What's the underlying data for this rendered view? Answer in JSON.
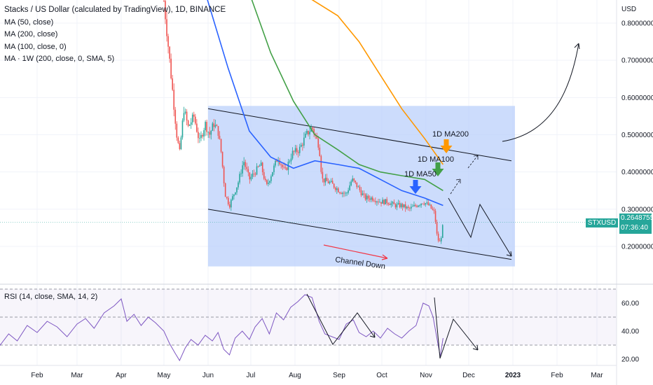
{
  "chart_data": [
    {
      "type": "candlestick",
      "title": "Stacks / US Dollar (calculated by TradingView), 1D, BINANCE",
      "indicators": [
        "MA (50, close)",
        "MA (200, close)",
        "MA (100, close, 0)",
        "MA · 1W (200, close, 0, SMA, 5)"
      ],
      "currency_label": "USD",
      "y_ticks": [
        "0.80000000",
        "0.70000000",
        "0.60000000",
        "0.50000000",
        "0.40000000",
        "0.30000000",
        "0.20000000"
      ],
      "ylim": [
        0.17,
        0.875
      ],
      "x_ticks": [
        "Feb",
        "Mar",
        "Apr",
        "May",
        "Jun",
        "Jul",
        "Aug",
        "Sep",
        "Oct",
        "Nov",
        "Dec",
        "2023",
        "Feb",
        "Mar"
      ],
      "price": {
        "symbol": "STXUSD",
        "value": "0.26487555",
        "countdown": "07:36:40"
      },
      "price_path": [
        [
          "2022-05-01",
          0.86
        ],
        [
          "2022-05-03",
          0.78
        ],
        [
          "2022-05-06",
          0.66
        ],
        [
          "2022-05-08",
          0.58
        ],
        [
          "2022-05-10",
          0.5
        ],
        [
          "2022-05-12",
          0.45
        ],
        [
          "2022-05-15",
          0.57
        ],
        [
          "2022-05-18",
          0.52
        ],
        [
          "2022-05-22",
          0.55
        ],
        [
          "2022-05-26",
          0.48
        ],
        [
          "2022-05-30",
          0.53
        ],
        [
          "2022-06-02",
          0.5
        ],
        [
          "2022-06-05",
          0.53
        ],
        [
          "2022-06-08",
          0.51
        ],
        [
          "2022-06-10",
          0.46
        ],
        [
          "2022-06-13",
          0.34
        ],
        [
          "2022-06-16",
          0.31
        ],
        [
          "2022-06-19",
          0.34
        ],
        [
          "2022-06-22",
          0.37
        ],
        [
          "2022-06-26",
          0.43
        ],
        [
          "2022-06-30",
          0.38
        ],
        [
          "2022-07-04",
          0.4
        ],
        [
          "2022-07-08",
          0.42
        ],
        [
          "2022-07-12",
          0.36
        ],
        [
          "2022-07-16",
          0.4
        ],
        [
          "2022-07-20",
          0.44
        ],
        [
          "2022-07-25",
          0.4
        ],
        [
          "2022-07-30",
          0.45
        ],
        [
          "2022-08-04",
          0.46
        ],
        [
          "2022-08-09",
          0.5
        ],
        [
          "2022-08-13",
          0.52
        ],
        [
          "2022-08-18",
          0.47
        ],
        [
          "2022-08-20",
          0.38
        ],
        [
          "2022-08-26",
          0.37
        ],
        [
          "2022-09-01",
          0.35
        ],
        [
          "2022-09-06",
          0.34
        ],
        [
          "2022-09-10",
          0.38
        ],
        [
          "2022-09-14",
          0.36
        ],
        [
          "2022-09-19",
          0.33
        ],
        [
          "2022-09-24",
          0.33
        ],
        [
          "2022-09-30",
          0.32
        ],
        [
          "2022-10-05",
          0.32
        ],
        [
          "2022-10-10",
          0.31
        ],
        [
          "2022-10-15",
          0.31
        ],
        [
          "2022-10-20",
          0.3
        ],
        [
          "2022-10-25",
          0.31
        ],
        [
          "2022-10-30",
          0.32
        ],
        [
          "2022-11-03",
          0.31
        ],
        [
          "2022-11-07",
          0.29
        ],
        [
          "2022-11-09",
          0.22
        ],
        [
          "2022-11-11",
          0.21
        ],
        [
          "2022-11-13",
          0.26
        ]
      ],
      "moving_averages": [
        {
          "name": "1D MA50",
          "color": "#2962ff",
          "points": [
            [
              "2022-05-31",
              0.87
            ],
            [
              "2022-06-15",
              0.68
            ],
            [
              "2022-06-30",
              0.51
            ],
            [
              "2022-07-15",
              0.44
            ],
            [
              "2022-07-31",
              0.41
            ],
            [
              "2022-08-15",
              0.43
            ],
            [
              "2022-08-31",
              0.42
            ],
            [
              "2022-09-15",
              0.41
            ],
            [
              "2022-09-30",
              0.38
            ],
            [
              "2022-10-15",
              0.35
            ],
            [
              "2022-10-31",
              0.33
            ],
            [
              "2022-11-13",
              0.31
            ]
          ]
        },
        {
          "name": "1D MA100",
          "color": "#43a047",
          "points": [
            [
              "2022-07-01",
              0.87
            ],
            [
              "2022-07-15",
              0.72
            ],
            [
              "2022-07-31",
              0.59
            ],
            [
              "2022-08-15",
              0.5
            ],
            [
              "2022-08-31",
              0.46
            ],
            [
              "2022-09-15",
              0.42
            ],
            [
              "2022-09-30",
              0.4
            ],
            [
              "2022-10-15",
              0.39
            ],
            [
              "2022-10-31",
              0.38
            ],
            [
              "2022-11-13",
              0.35
            ]
          ]
        },
        {
          "name": "1D MA200",
          "color": "#ff9800",
          "points": [
            [
              "2022-08-10",
              0.87
            ],
            [
              "2022-08-31",
              0.82
            ],
            [
              "2022-09-15",
              0.75
            ],
            [
              "2022-09-30",
              0.66
            ],
            [
              "2022-10-15",
              0.57
            ],
            [
              "2022-10-31",
              0.49
            ],
            [
              "2022-11-13",
              0.42
            ]
          ]
        }
      ],
      "channel": {
        "label": "Channel Down",
        "upper": [
          [
            "2022-06-01",
            0.57
          ],
          [
            "2022-12-31",
            0.43
          ]
        ],
        "lower": [
          [
            "2022-06-01",
            0.3
          ],
          [
            "2022-12-31",
            0.165
          ]
        ]
      },
      "annotations": [
        "1D MA200",
        "1D MA100",
        "1D MA50"
      ]
    },
    {
      "type": "line",
      "title": "RSI (14, close, SMA, 14, 2)",
      "y_ticks": [
        "60.00",
        "40.00",
        "20.00"
      ],
      "ylim": [
        15,
        75
      ],
      "bands": [
        30,
        50,
        70
      ],
      "values": [
        [
          "2022-01-01",
          42
        ],
        [
          "2022-01-06",
          30
        ],
        [
          "2022-01-12",
          38
        ],
        [
          "2022-01-18",
          33
        ],
        [
          "2022-01-25",
          44
        ],
        [
          "2022-02-01",
          39
        ],
        [
          "2022-02-08",
          47
        ],
        [
          "2022-02-15",
          43
        ],
        [
          "2022-02-22",
          36
        ],
        [
          "2022-03-01",
          45
        ],
        [
          "2022-03-07",
          49
        ],
        [
          "2022-03-13",
          42
        ],
        [
          "2022-03-20",
          53
        ],
        [
          "2022-03-27",
          58
        ],
        [
          "2022-04-01",
          63
        ],
        [
          "2022-04-05",
          47
        ],
        [
          "2022-04-10",
          52
        ],
        [
          "2022-04-15",
          44
        ],
        [
          "2022-04-20",
          50
        ],
        [
          "2022-04-25",
          46
        ],
        [
          "2022-05-01",
          40
        ],
        [
          "2022-05-05",
          31
        ],
        [
          "2022-05-09",
          24
        ],
        [
          "2022-05-12",
          19
        ],
        [
          "2022-05-16",
          28
        ],
        [
          "2022-05-20",
          34
        ],
        [
          "2022-05-25",
          30
        ],
        [
          "2022-05-30",
          37
        ],
        [
          "2022-06-04",
          33
        ],
        [
          "2022-06-08",
          39
        ],
        [
          "2022-06-12",
          27
        ],
        [
          "2022-06-16",
          23
        ],
        [
          "2022-06-20",
          35
        ],
        [
          "2022-06-25",
          40
        ],
        [
          "2022-06-30",
          34
        ],
        [
          "2022-07-04",
          43
        ],
        [
          "2022-07-09",
          49
        ],
        [
          "2022-07-14",
          38
        ],
        [
          "2022-07-19",
          53
        ],
        [
          "2022-07-24",
          48
        ],
        [
          "2022-07-29",
          57
        ],
        [
          "2022-08-03",
          61
        ],
        [
          "2022-08-08",
          66
        ],
        [
          "2022-08-13",
          64
        ],
        [
          "2022-08-18",
          47
        ],
        [
          "2022-08-22",
          38
        ],
        [
          "2022-08-27",
          36
        ],
        [
          "2022-09-01",
          34
        ],
        [
          "2022-09-06",
          45
        ],
        [
          "2022-09-11",
          48
        ],
        [
          "2022-09-15",
          39
        ],
        [
          "2022-09-20",
          36
        ],
        [
          "2022-09-25",
          40
        ],
        [
          "2022-09-30",
          35
        ],
        [
          "2022-10-05",
          42
        ],
        [
          "2022-10-10",
          38
        ],
        [
          "2022-10-15",
          35
        ],
        [
          "2022-10-20",
          40
        ],
        [
          "2022-10-25",
          44
        ],
        [
          "2022-10-30",
          60
        ],
        [
          "2022-11-03",
          58
        ],
        [
          "2022-11-06",
          50
        ],
        [
          "2022-11-09",
          33
        ],
        [
          "2022-11-11",
          22
        ],
        [
          "2022-11-13",
          35
        ]
      ]
    }
  ]
}
